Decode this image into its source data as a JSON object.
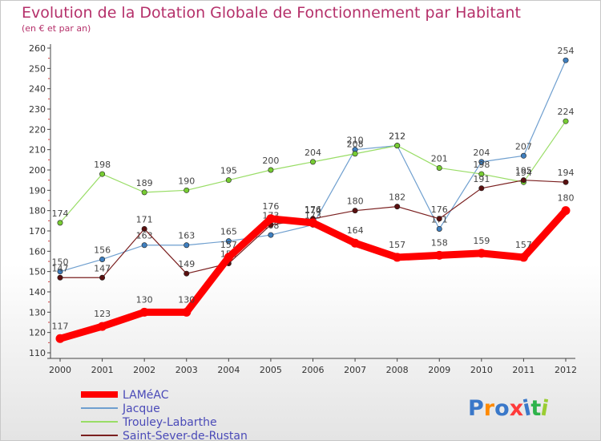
{
  "header": {
    "title": "Evolution de la Dotation Globale de Fonctionnement par Habitant",
    "subtitle": "(en € et par an)"
  },
  "brand": {
    "logo_text": "Proxiti"
  },
  "chart_data": {
    "type": "line",
    "title": "Evolution de la Dotation Globale de Fonctionnement par Habitant",
    "subtitle": "(en € et par an)",
    "xlabel": "",
    "ylabel": "",
    "ylim": [
      110,
      260
    ],
    "yticks": [
      110,
      120,
      130,
      140,
      150,
      160,
      170,
      180,
      190,
      200,
      210,
      220,
      230,
      240,
      250,
      260
    ],
    "x": [
      2000,
      2001,
      2002,
      2003,
      2004,
      2005,
      2006,
      2007,
      2008,
      2009,
      2010,
      2011,
      2012
    ],
    "legend_position": "bottom-left",
    "grid": false,
    "series": [
      {
        "name": "Jacque",
        "color": "#6f9fcf",
        "marker": "#3f7fbf",
        "values": [
          150,
          156,
          163,
          163,
          165,
          168,
          173,
          210,
          212,
          171,
          204,
          207,
          254
        ]
      },
      {
        "name": "Trouley-Labarthe",
        "color": "#99dd66",
        "marker": "#77cc33",
        "values": [
          174,
          198,
          189,
          190,
          195,
          200,
          204,
          208,
          212,
          201,
          198,
          194,
          224
        ]
      },
      {
        "name": "Saint-Sever-de-Rustan",
        "color": "#7a1f1f",
        "marker": "#5a1010",
        "values": [
          147,
          147,
          171,
          149,
          154,
          173,
          176,
          180,
          182,
          176,
          191,
          195,
          194
        ]
      },
      {
        "name": "LAMéAC",
        "color": "#ff0000",
        "marker": "#ff0000",
        "values": [
          117,
          123,
          130,
          130,
          157,
          176,
          174,
          164,
          157,
          158,
          159,
          157,
          180
        ]
      }
    ],
    "legend_order": [
      "LAMéAC",
      "Jacque",
      "Trouley-Labarthe",
      "Saint-Sever-de-Rustan"
    ]
  }
}
